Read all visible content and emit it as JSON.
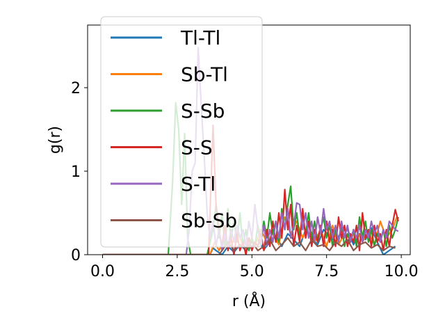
{
  "chart_data": {
    "type": "line",
    "xlabel": "r (Å)",
    "ylabel": "g(r)",
    "xlim": [
      -0.5,
      10.3
    ],
    "ylim": [
      0,
      2.75
    ],
    "xticks": [
      0.0,
      2.5,
      5.0,
      7.5,
      10.0
    ],
    "xtick_labels": [
      "0.0",
      "2.5",
      "5.0",
      "7.5",
      "10.0"
    ],
    "yticks": [
      0,
      1,
      2
    ],
    "ytick_labels": [
      "0",
      "1",
      "2"
    ],
    "grid": false,
    "legend_position": "top-left",
    "series": [
      {
        "name": "Tl-Tl",
        "color": "#1f77b4",
        "points": [
          [
            0,
            0
          ],
          [
            3.6,
            0
          ],
          [
            3.7,
            0.08
          ],
          [
            3.8,
            0.05
          ],
          [
            4.0,
            0.0
          ],
          [
            4.2,
            0.1
          ],
          [
            4.4,
            0.03
          ],
          [
            4.6,
            0.12
          ],
          [
            4.8,
            0.05
          ],
          [
            5.0,
            0.1
          ],
          [
            5.2,
            0.18
          ],
          [
            5.4,
            0.06
          ],
          [
            5.6,
            0.15
          ],
          [
            5.8,
            0.22
          ],
          [
            6.0,
            0.1
          ],
          [
            6.2,
            0.25
          ],
          [
            6.4,
            0.18
          ],
          [
            6.6,
            0.1
          ],
          [
            6.8,
            0.3
          ],
          [
            7.0,
            0.2
          ],
          [
            7.2,
            0.12
          ],
          [
            7.4,
            0.3
          ],
          [
            7.6,
            0.22
          ],
          [
            7.8,
            0.15
          ],
          [
            8.0,
            0.28
          ],
          [
            8.2,
            0.3
          ],
          [
            8.4,
            0.12
          ],
          [
            8.6,
            0.25
          ],
          [
            8.8,
            0.18
          ],
          [
            9.0,
            0.32
          ],
          [
            9.2,
            0.15
          ],
          [
            9.4,
            0.0
          ],
          [
            9.6,
            0.05
          ],
          [
            9.8,
            0.1
          ]
        ]
      },
      {
        "name": "Sb-Tl",
        "color": "#ff7f0e",
        "points": [
          [
            0,
            0
          ],
          [
            3.6,
            0
          ],
          [
            3.75,
            0.15
          ],
          [
            3.9,
            0.05
          ],
          [
            4.1,
            0.2
          ],
          [
            4.3,
            0.1
          ],
          [
            4.5,
            0.28
          ],
          [
            4.7,
            0.12
          ],
          [
            4.9,
            0.2
          ],
          [
            5.1,
            0.1
          ],
          [
            5.3,
            0.3
          ],
          [
            5.5,
            0.15
          ],
          [
            5.7,
            0.25
          ],
          [
            5.9,
            0.12
          ],
          [
            6.1,
            0.45
          ],
          [
            6.3,
            0.25
          ],
          [
            6.5,
            0.4
          ],
          [
            6.7,
            0.2
          ],
          [
            6.9,
            0.35
          ],
          [
            7.1,
            0.15
          ],
          [
            7.3,
            0.3
          ],
          [
            7.5,
            0.1
          ],
          [
            7.7,
            0.35
          ],
          [
            7.9,
            0.12
          ],
          [
            8.1,
            0.25
          ],
          [
            8.3,
            0.18
          ],
          [
            8.5,
            0.3
          ],
          [
            8.7,
            0.15
          ],
          [
            8.9,
            0.28
          ],
          [
            9.1,
            0.12
          ],
          [
            9.3,
            0.4
          ],
          [
            9.5,
            0.2
          ],
          [
            9.7,
            0.3
          ],
          [
            9.85,
            0.45
          ]
        ]
      },
      {
        "name": "S-Sb",
        "color": "#2ca02c",
        "points": [
          [
            0,
            0
          ],
          [
            2.2,
            0
          ],
          [
            2.35,
            0.9
          ],
          [
            2.45,
            1.82
          ],
          [
            2.55,
            1.5
          ],
          [
            2.65,
            0.6
          ],
          [
            2.75,
            1.45
          ],
          [
            2.85,
            0.2
          ],
          [
            2.95,
            0.0
          ],
          [
            3.1,
            0.0
          ],
          [
            3.5,
            0.0
          ],
          [
            3.7,
            0.3
          ],
          [
            3.8,
            0.6
          ],
          [
            3.9,
            0.2
          ],
          [
            4.0,
            0.5
          ],
          [
            4.1,
            0.1
          ],
          [
            4.2,
            0.55
          ],
          [
            4.3,
            0.2
          ],
          [
            4.4,
            0.4
          ],
          [
            4.5,
            0.15
          ],
          [
            4.6,
            0.5
          ],
          [
            4.7,
            0.1
          ],
          [
            4.8,
            0.3
          ],
          [
            4.9,
            0.05
          ],
          [
            5.0,
            0.2
          ],
          [
            5.1,
            0.1
          ],
          [
            5.2,
            0.35
          ],
          [
            5.3,
            0.15
          ],
          [
            5.4,
            0.4
          ],
          [
            5.5,
            0.2
          ],
          [
            5.6,
            0.5
          ],
          [
            5.7,
            0.25
          ],
          [
            5.8,
            0.4
          ],
          [
            5.9,
            0.15
          ],
          [
            6.0,
            0.55
          ],
          [
            6.1,
            0.3
          ],
          [
            6.2,
            0.6
          ],
          [
            6.3,
            0.82
          ],
          [
            6.4,
            0.3
          ],
          [
            6.5,
            0.5
          ],
          [
            6.6,
            0.2
          ],
          [
            6.7,
            0.45
          ],
          [
            6.8,
            0.25
          ],
          [
            6.9,
            0.5
          ],
          [
            7.0,
            0.2
          ],
          [
            7.1,
            0.4
          ],
          [
            7.2,
            0.15
          ],
          [
            7.3,
            0.3
          ],
          [
            7.4,
            0.45
          ],
          [
            7.5,
            0.2
          ],
          [
            7.6,
            0.35
          ],
          [
            7.7,
            0.1
          ],
          [
            7.8,
            0.3
          ],
          [
            7.9,
            0.15
          ],
          [
            8.0,
            0.35
          ],
          [
            8.1,
            0.1
          ],
          [
            8.2,
            0.25
          ],
          [
            8.3,
            0.15
          ],
          [
            8.4,
            0.3
          ],
          [
            8.5,
            0.1
          ],
          [
            8.6,
            0.45
          ],
          [
            8.7,
            0.2
          ],
          [
            8.8,
            0.4
          ],
          [
            8.9,
            0.15
          ],
          [
            9.0,
            0.3
          ],
          [
            9.1,
            0.1
          ],
          [
            9.2,
            0.25
          ],
          [
            9.3,
            0.15
          ],
          [
            9.4,
            0.3
          ],
          [
            9.5,
            0.1
          ],
          [
            9.6,
            0.35
          ],
          [
            9.7,
            0.2
          ],
          [
            9.8,
            0.3
          ],
          [
            9.9,
            0.45
          ]
        ]
      },
      {
        "name": "S-S",
        "color": "#d62728",
        "points": [
          [
            0,
            0
          ],
          [
            3.55,
            0
          ],
          [
            3.6,
            0.5
          ],
          [
            3.7,
            1.55
          ],
          [
            3.8,
            0.6
          ],
          [
            3.9,
            0.3
          ],
          [
            4.0,
            0.1
          ],
          [
            4.1,
            0.35
          ],
          [
            4.2,
            0.05
          ],
          [
            4.3,
            0.2
          ],
          [
            4.4,
            0.0
          ],
          [
            4.5,
            0.25
          ],
          [
            4.6,
            0.05
          ],
          [
            4.7,
            0.15
          ],
          [
            4.8,
            0.0
          ],
          [
            4.9,
            0.2
          ],
          [
            5.0,
            0.05
          ],
          [
            5.1,
            0.15
          ],
          [
            5.2,
            0.1
          ],
          [
            5.3,
            0.25
          ],
          [
            5.4,
            0.05
          ],
          [
            5.5,
            0.3
          ],
          [
            5.6,
            0.1
          ],
          [
            5.7,
            0.4
          ],
          [
            5.8,
            0.15
          ],
          [
            5.9,
            0.5
          ],
          [
            6.0,
            0.2
          ],
          [
            6.1,
            0.78
          ],
          [
            6.2,
            0.3
          ],
          [
            6.3,
            0.6
          ],
          [
            6.4,
            0.1
          ],
          [
            6.5,
            0.35
          ],
          [
            6.6,
            0.15
          ],
          [
            6.7,
            0.55
          ],
          [
            6.8,
            0.2
          ],
          [
            6.9,
            0.4
          ],
          [
            7.0,
            0.1
          ],
          [
            7.1,
            0.3
          ],
          [
            7.2,
            0.15
          ],
          [
            7.3,
            0.35
          ],
          [
            7.4,
            0.1
          ],
          [
            7.5,
            0.4
          ],
          [
            7.6,
            0.15
          ],
          [
            7.7,
            0.3
          ],
          [
            7.8,
            0.1
          ],
          [
            7.9,
            0.45
          ],
          [
            8.0,
            0.2
          ],
          [
            8.1,
            0.35
          ],
          [
            8.2,
            0.1
          ],
          [
            8.3,
            0.25
          ],
          [
            8.4,
            0.15
          ],
          [
            8.5,
            0.35
          ],
          [
            8.6,
            0.05
          ],
          [
            8.7,
            0.5
          ],
          [
            8.8,
            0.2
          ],
          [
            8.9,
            0.3
          ],
          [
            9.0,
            0.1
          ],
          [
            9.1,
            0.35
          ],
          [
            9.2,
            0.15
          ],
          [
            9.3,
            0.25
          ],
          [
            9.4,
            0.05
          ],
          [
            9.5,
            0.3
          ],
          [
            9.6,
            0.1
          ],
          [
            9.7,
            0.35
          ],
          [
            9.8,
            0.54
          ],
          [
            9.9,
            0.4
          ]
        ]
      },
      {
        "name": "S-Tl",
        "color": "#9467bd",
        "points": [
          [
            0,
            0
          ],
          [
            2.8,
            0
          ],
          [
            2.9,
            0.3
          ],
          [
            3.0,
            1.0
          ],
          [
            3.1,
            1.1
          ],
          [
            3.2,
            2.48
          ],
          [
            3.3,
            1.8
          ],
          [
            3.4,
            1.2
          ],
          [
            3.5,
            0.5
          ],
          [
            3.6,
            0.2
          ],
          [
            3.7,
            0.4
          ],
          [
            3.8,
            0.1
          ],
          [
            3.9,
            0.3
          ],
          [
            4.0,
            0.05
          ],
          [
            4.1,
            0.25
          ],
          [
            4.2,
            0.1
          ],
          [
            4.3,
            0.3
          ],
          [
            4.4,
            0.15
          ],
          [
            4.5,
            0.35
          ],
          [
            4.6,
            0.2
          ],
          [
            4.7,
            0.3
          ],
          [
            4.8,
            0.1
          ],
          [
            4.9,
            0.4
          ],
          [
            5.0,
            0.2
          ],
          [
            5.1,
            0.6
          ],
          [
            5.2,
            0.3
          ],
          [
            5.3,
            0.15
          ],
          [
            5.4,
            0.35
          ],
          [
            5.5,
            0.1
          ],
          [
            5.6,
            0.3
          ],
          [
            5.7,
            0.15
          ],
          [
            5.8,
            0.4
          ],
          [
            5.9,
            0.2
          ],
          [
            6.0,
            0.5
          ],
          [
            6.1,
            0.3
          ],
          [
            6.2,
            0.55
          ],
          [
            6.3,
            0.2
          ],
          [
            6.4,
            0.35
          ],
          [
            6.5,
            0.62
          ],
          [
            6.6,
            0.6
          ],
          [
            6.7,
            0.3
          ],
          [
            6.8,
            0.5
          ],
          [
            6.9,
            0.2
          ],
          [
            7.0,
            0.4
          ],
          [
            7.1,
            0.15
          ],
          [
            7.2,
            0.45
          ],
          [
            7.3,
            0.25
          ],
          [
            7.4,
            0.55
          ],
          [
            7.5,
            0.3
          ],
          [
            7.6,
            0.4
          ],
          [
            7.7,
            0.2
          ],
          [
            7.8,
            0.35
          ],
          [
            7.9,
            0.15
          ],
          [
            8.0,
            0.4
          ],
          [
            8.1,
            0.2
          ],
          [
            8.2,
            0.35
          ],
          [
            8.3,
            0.15
          ],
          [
            8.4,
            0.3
          ],
          [
            8.5,
            0.2
          ],
          [
            8.6,
            0.35
          ],
          [
            8.7,
            0.15
          ],
          [
            8.8,
            0.3
          ],
          [
            8.9,
            0.2
          ],
          [
            9.0,
            0.4
          ],
          [
            9.1,
            0.25
          ],
          [
            9.2,
            0.35
          ],
          [
            9.3,
            0.15
          ],
          [
            9.4,
            0.3
          ],
          [
            9.5,
            0.2
          ],
          [
            9.6,
            0.4
          ],
          [
            9.7,
            0.35
          ],
          [
            9.8,
            0.3
          ],
          [
            9.9,
            0.28
          ]
        ]
      },
      {
        "name": "Sb-Sb",
        "color": "#8c564b",
        "points": [
          [
            0,
            0
          ],
          [
            3.9,
            0
          ],
          [
            4.0,
            0.05
          ],
          [
            4.2,
            0.15
          ],
          [
            4.4,
            0.05
          ],
          [
            4.6,
            0.12
          ],
          [
            4.8,
            0.08
          ],
          [
            5.0,
            0.15
          ],
          [
            5.2,
            0.05
          ],
          [
            5.4,
            0.1
          ],
          [
            5.6,
            0.18
          ],
          [
            5.8,
            0.05
          ],
          [
            6.0,
            0.12
          ],
          [
            6.2,
            0.2
          ],
          [
            6.4,
            0.1
          ],
          [
            6.6,
            0.15
          ],
          [
            6.8,
            0.05
          ],
          [
            7.0,
            0.18
          ],
          [
            7.2,
            0.1
          ],
          [
            7.4,
            0.12
          ],
          [
            7.6,
            0.05
          ],
          [
            7.8,
            0.15
          ],
          [
            8.0,
            0.1
          ],
          [
            8.2,
            0.18
          ],
          [
            8.4,
            0.05
          ],
          [
            8.6,
            0.12
          ],
          [
            8.8,
            0.15
          ],
          [
            9.0,
            0.08
          ],
          [
            9.2,
            0.12
          ],
          [
            9.4,
            0.05
          ],
          [
            9.6,
            0.1
          ],
          [
            9.8,
            0.08
          ]
        ]
      }
    ]
  }
}
